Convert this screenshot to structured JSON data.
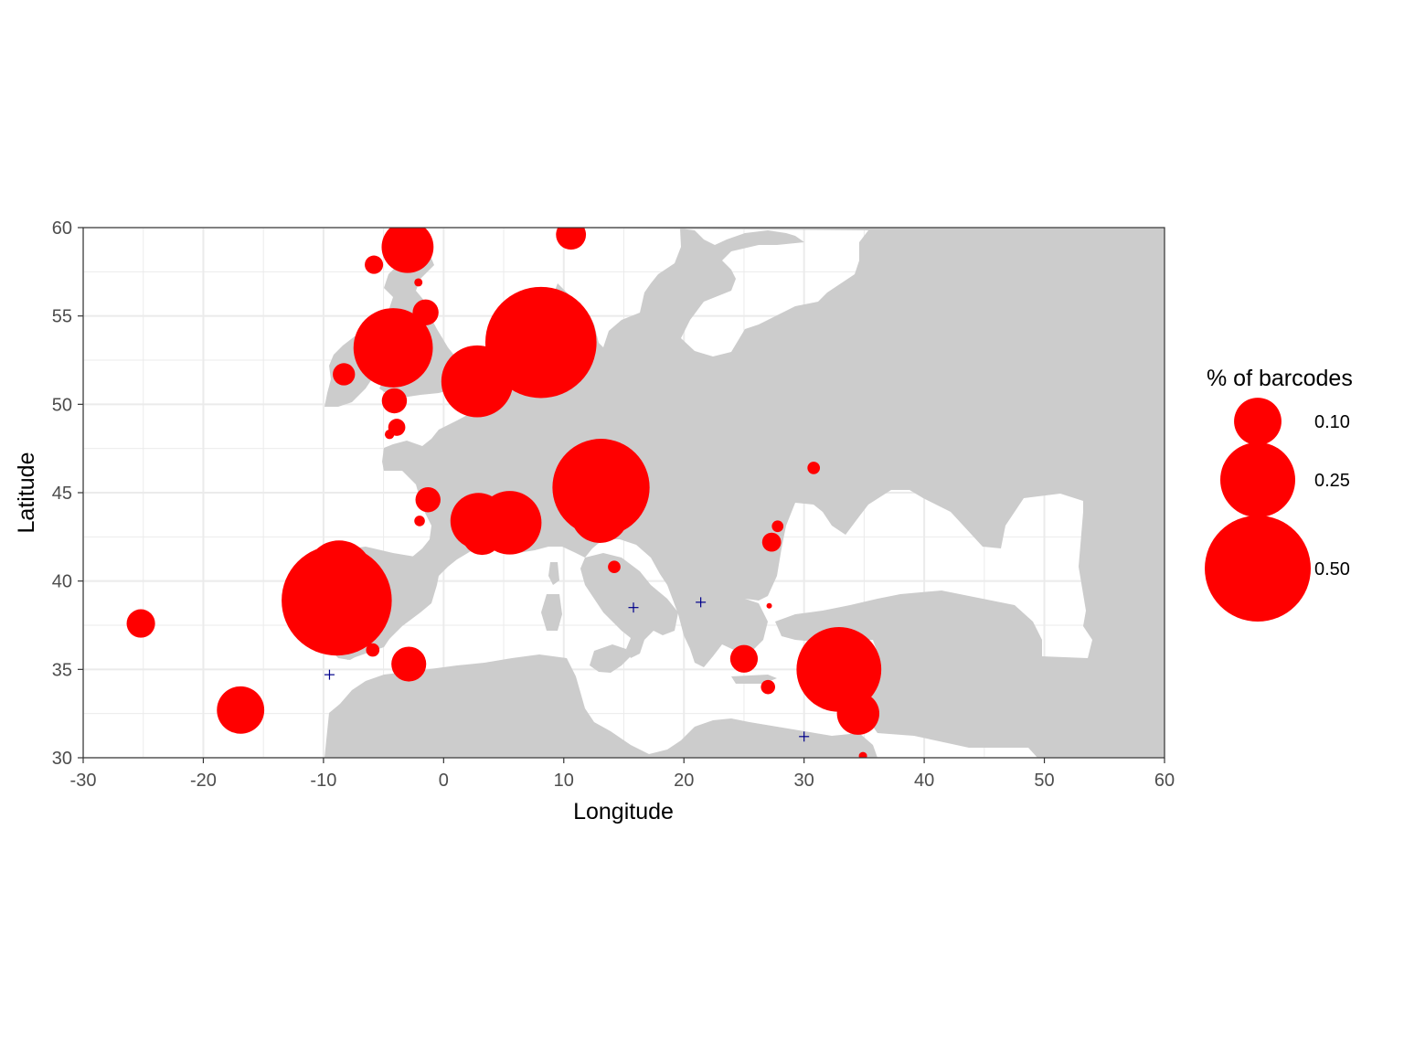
{
  "chart_data": {
    "type": "scatter",
    "xlabel": "Longitude",
    "ylabel": "Latitude",
    "xlim": [
      -30,
      60
    ],
    "ylim": [
      30,
      60
    ],
    "x_ticks": [
      "-30",
      "-20",
      "-10",
      "0",
      "10",
      "20",
      "30",
      "40",
      "50",
      "60"
    ],
    "y_ticks": [
      "30",
      "35",
      "40",
      "45",
      "50",
      "55",
      "60"
    ],
    "grid": true,
    "colors": {
      "point": "#ff0000",
      "absent_marker": "#00008b",
      "land": "#cccccc",
      "sea": "#ffffff",
      "grid": "#ebebeb"
    },
    "legend": {
      "title": "% of barcodes",
      "placement": "right",
      "entries": [
        {
          "label": "0.10",
          "value": 0.1
        },
        {
          "label": "0.25",
          "value": 0.25
        },
        {
          "label": "0.50",
          "value": 0.5
        }
      ]
    },
    "points": [
      {
        "lon": -3.0,
        "lat": 58.9,
        "value": 0.12
      },
      {
        "lon": 10.6,
        "lat": 59.6,
        "value": 0.04
      },
      {
        "lon": -5.8,
        "lat": 57.9,
        "value": 0.015
      },
      {
        "lon": -2.1,
        "lat": 56.9,
        "value": 0.003
      },
      {
        "lon": -1.5,
        "lat": 55.2,
        "value": 0.03
      },
      {
        "lon": 10.1,
        "lat": 54.8,
        "value": 0.03
      },
      {
        "lon": 8.1,
        "lat": 53.5,
        "value": 0.55
      },
      {
        "lon": -4.2,
        "lat": 53.2,
        "value": 0.28
      },
      {
        "lon": -8.3,
        "lat": 51.7,
        "value": 0.022
      },
      {
        "lon": 2.8,
        "lat": 51.3,
        "value": 0.23
      },
      {
        "lon": -4.1,
        "lat": 50.2,
        "value": 0.028
      },
      {
        "lon": -3.9,
        "lat": 48.7,
        "value": 0.013
      },
      {
        "lon": -4.5,
        "lat": 48.3,
        "value": 0.004
      },
      {
        "lon": 30.8,
        "lat": 46.4,
        "value": 0.007
      },
      {
        "lon": 13.1,
        "lat": 45.3,
        "value": 0.42
      },
      {
        "lon": -1.3,
        "lat": 44.6,
        "value": 0.028
      },
      {
        "lon": 13.0,
        "lat": 43.8,
        "value": 0.15
      },
      {
        "lon": 2.9,
        "lat": 43.4,
        "value": 0.14
      },
      {
        "lon": 5.5,
        "lat": 43.3,
        "value": 0.18
      },
      {
        "lon": 3.2,
        "lat": 42.6,
        "value": 0.07
      },
      {
        "lon": -2.0,
        "lat": 43.4,
        "value": 0.005
      },
      {
        "lon": 27.8,
        "lat": 43.1,
        "value": 0.006
      },
      {
        "lon": 27.3,
        "lat": 42.2,
        "value": 0.016
      },
      {
        "lon": -8.9,
        "lat": 41.6,
        "value": 0.006
      },
      {
        "lon": -8.7,
        "lat": 40.4,
        "value": 0.2
      },
      {
        "lon": 14.2,
        "lat": 40.8,
        "value": 0.007
      },
      {
        "lon": -8.9,
        "lat": 38.9,
        "value": 0.54
      },
      {
        "lon": -8.0,
        "lat": 37.5,
        "value": 0.03
      },
      {
        "lon": 27.1,
        "lat": 38.6,
        "value": 0.001
      },
      {
        "lon": -25.2,
        "lat": 37.6,
        "value": 0.036
      },
      {
        "lon": -5.9,
        "lat": 36.1,
        "value": 0.008
      },
      {
        "lon": -2.9,
        "lat": 35.3,
        "value": 0.054
      },
      {
        "lon": 25.0,
        "lat": 35.6,
        "value": 0.034
      },
      {
        "lon": 32.9,
        "lat": 35.0,
        "value": 0.32
      },
      {
        "lon": 27.0,
        "lat": 34.0,
        "value": 0.009
      },
      {
        "lon": 32.9,
        "lat": 33.3,
        "value": 0.016
      },
      {
        "lon": -16.9,
        "lat": 32.7,
        "value": 0.1
      },
      {
        "lon": 34.5,
        "lat": 32.5,
        "value": 0.08
      },
      {
        "lon": 34.9,
        "lat": 30.1,
        "value": 0.003
      }
    ],
    "absent_sites": [
      {
        "lon": 1.0,
        "lat": 51.9
      },
      {
        "lon": -9.5,
        "lat": 34.7
      },
      {
        "lon": 15.8,
        "lat": 38.5
      },
      {
        "lon": 21.4,
        "lat": 38.8
      },
      {
        "lon": 30.0,
        "lat": 31.2
      }
    ]
  }
}
